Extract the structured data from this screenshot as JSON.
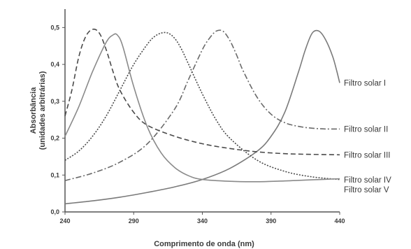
{
  "chart_data": {
    "type": "line",
    "title": "",
    "xlabel": "Comprimento de onda (nm)",
    "ylabel_line1": "Absorbância",
    "ylabel_line2": "(unidades arbitrárias)",
    "xlim": [
      240,
      440
    ],
    "ylim": [
      0.0,
      0.55
    ],
    "xticks": [
      240,
      290,
      340,
      390,
      440
    ],
    "xtick_labels": [
      "240",
      "290",
      "340",
      "390",
      "440"
    ],
    "yticks": [
      0.0,
      0.1,
      0.2,
      0.3,
      0.4,
      0.5
    ],
    "ytick_labels": [
      "0,0",
      "0,1",
      "0,2",
      "0,3",
      "0,4",
      "0,5"
    ],
    "grid": false,
    "legend_placement": "right, next to line ends",
    "series": [
      {
        "name": "Filtro solar I",
        "dash": "solid",
        "color": "#7a7a7a",
        "label_y": 0.35,
        "x": [
          240,
          260,
          280,
          300,
          320,
          340,
          360,
          380,
          390,
          400,
          410,
          415,
          420,
          425,
          430,
          435,
          438,
          440
        ],
        "y": [
          0.022,
          0.03,
          0.04,
          0.053,
          0.068,
          0.088,
          0.118,
          0.165,
          0.205,
          0.27,
          0.38,
          0.44,
          0.485,
          0.49,
          0.465,
          0.42,
          0.38,
          0.35
        ]
      },
      {
        "name": "Filtro solar II",
        "dash": "8,3,2,3",
        "color": "#6a6a6a",
        "label_y": 0.225,
        "x": [
          240,
          260,
          280,
          300,
          320,
          330,
          340,
          345,
          350,
          355,
          360,
          365,
          370,
          380,
          390,
          400,
          410,
          420,
          430,
          440
        ],
        "y": [
          0.085,
          0.105,
          0.135,
          0.185,
          0.28,
          0.36,
          0.44,
          0.47,
          0.49,
          0.49,
          0.465,
          0.425,
          0.38,
          0.31,
          0.265,
          0.242,
          0.232,
          0.227,
          0.225,
          0.225
        ]
      },
      {
        "name": "Filtro solar III",
        "dash": "7,4",
        "color": "#4a4a4a",
        "label_y": 0.155,
        "x": [
          240,
          245,
          250,
          255,
          260,
          265,
          270,
          275,
          280,
          290,
          300,
          320,
          340,
          360,
          380,
          400,
          420,
          440
        ],
        "y": [
          0.26,
          0.33,
          0.42,
          0.475,
          0.495,
          0.485,
          0.44,
          0.38,
          0.33,
          0.27,
          0.235,
          0.205,
          0.185,
          0.172,
          0.163,
          0.158,
          0.156,
          0.155
        ]
      },
      {
        "name": "Filtro solar IV",
        "dash": "2,2",
        "color": "#4a4a4a",
        "label_y": 0.085,
        "x": [
          240,
          250,
          260,
          270,
          280,
          290,
          300,
          305,
          310,
          315,
          320,
          325,
          330,
          340,
          350,
          360,
          380,
          400,
          420,
          440
        ],
        "y": [
          0.14,
          0.165,
          0.205,
          0.26,
          0.33,
          0.4,
          0.455,
          0.475,
          0.485,
          0.485,
          0.47,
          0.44,
          0.4,
          0.32,
          0.25,
          0.2,
          0.14,
          0.11,
          0.095,
          0.088
        ]
      },
      {
        "name": "Filtro solar V",
        "dash": "solid",
        "color": "#8a8a8a",
        "label_y": 0.085,
        "x": [
          240,
          250,
          260,
          270,
          275,
          278,
          282,
          290,
          300,
          310,
          320,
          330,
          340,
          360,
          380,
          400,
          420,
          440
        ],
        "y": [
          0.205,
          0.285,
          0.38,
          0.46,
          0.48,
          0.48,
          0.45,
          0.34,
          0.23,
          0.16,
          0.12,
          0.098,
          0.088,
          0.083,
          0.082,
          0.084,
          0.087,
          0.09
        ]
      }
    ]
  }
}
